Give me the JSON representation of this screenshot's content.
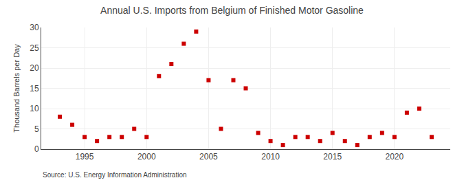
{
  "chart_data": {
    "type": "scatter",
    "title": "Annual U.S. Imports from Belgium of Finished Motor Gasoline",
    "ylabel": "Thousand Barrels per Day",
    "source": "Source: U.S. Energy Information Administration",
    "x": [
      1993,
      1994,
      1995,
      1996,
      1997,
      1998,
      1999,
      2000,
      2001,
      2002,
      2003,
      2004,
      2005,
      2006,
      2007,
      2008,
      2009,
      2010,
      2011,
      2012,
      2013,
      2014,
      2015,
      2016,
      2017,
      2018,
      2019,
      2020,
      2021,
      2022,
      2023
    ],
    "values": [
      8,
      6,
      3,
      2,
      3,
      3,
      5,
      3,
      18,
      21,
      26,
      29,
      17,
      5,
      17,
      15,
      4,
      2,
      1,
      3,
      3,
      2,
      4,
      2,
      1,
      3,
      4,
      3,
      9,
      10,
      3
    ],
    "color": "#cc0000",
    "marker": "square",
    "xlim": [
      1991.5,
      2024.5
    ],
    "xticks": [
      1995,
      2000,
      2005,
      2010,
      2015,
      2020
    ],
    "ylim": [
      0,
      30
    ],
    "yticks": [
      0,
      5,
      10,
      15,
      20,
      25,
      30
    ],
    "grid": true
  }
}
